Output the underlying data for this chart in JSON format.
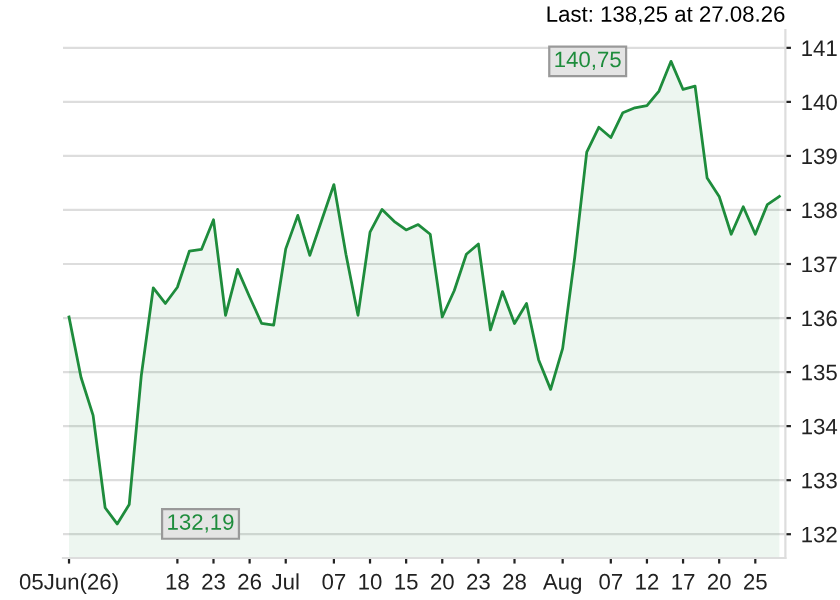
{
  "chart_data": {
    "type": "area",
    "title": "Last: 138,25 at 27.08.26",
    "categories": [
      "05Jun(26)",
      null,
      null,
      null,
      null,
      null,
      null,
      null,
      null,
      "18",
      null,
      null,
      "23",
      null,
      null,
      "26",
      null,
      null,
      "Jul",
      null,
      null,
      null,
      "07",
      null,
      null,
      "10",
      null,
      null,
      "15",
      null,
      null,
      "20",
      null,
      null,
      "23",
      null,
      null,
      "28",
      null,
      null,
      null,
      "Aug",
      null,
      null,
      null,
      "07",
      null,
      null,
      "12",
      null,
      null,
      "17",
      null,
      null,
      "20",
      null,
      null,
      "25",
      null,
      null
    ],
    "series": [
      {
        "color": "#1e8c3c",
        "values": [
          136.02,
          134.9,
          134.2,
          132.49,
          132.19,
          132.55,
          134.93,
          136.56,
          136.27,
          136.57,
          137.24,
          137.27,
          137.82,
          136.05,
          136.9,
          136.39,
          135.9,
          135.87,
          137.28,
          137.9,
          137.16,
          137.82,
          138.47,
          137.18,
          136.05,
          137.59,
          138.01,
          137.79,
          137.63,
          137.73,
          137.55,
          136.02,
          136.51,
          137.18,
          137.37,
          135.78,
          136.49,
          135.9,
          136.27,
          135.23,
          134.68,
          135.44,
          137.12,
          139.07,
          139.53,
          139.34,
          139.8,
          139.89,
          139.93,
          140.2,
          140.75,
          140.23,
          140.29,
          138.59,
          138.25,
          137.55,
          138.06,
          137.55,
          138.1,
          138.25
        ]
      }
    ],
    "ylim": [
      131.56,
      141.33
    ],
    "yticks": [
      132,
      133,
      134,
      135,
      136,
      137,
      138,
      139,
      140,
      141
    ],
    "grid": "y",
    "annotations": [
      {
        "text": "140,75",
        "y": 140.75
      },
      {
        "text": "132,19",
        "y": 132.19
      }
    ]
  }
}
